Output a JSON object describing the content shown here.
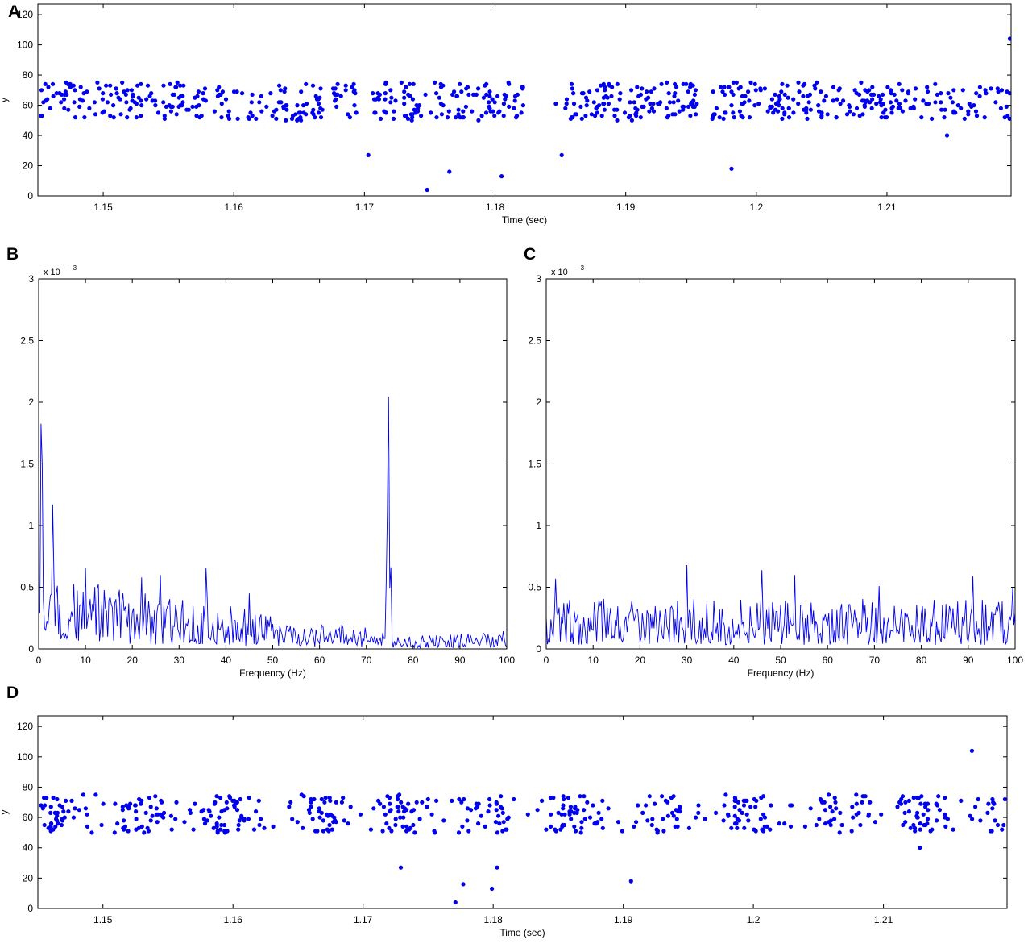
{
  "chart_data": [
    {
      "panel_label": "A",
      "type": "scatter",
      "xlabel": "Time (sec)",
      "ylabel": "y",
      "xlim": [
        1.145,
        1.2195
      ],
      "ylim": [
        0,
        127
      ],
      "xticks": [
        1.15,
        1.16,
        1.17,
        1.18,
        1.19,
        1.2,
        1.21
      ],
      "xtick_labels": [
        "1.15",
        "1.16",
        "1.17",
        "1.18",
        "1.19",
        "1.2",
        "1.21"
      ],
      "yticks": [
        0,
        20,
        40,
        60,
        80,
        100,
        120
      ],
      "ytick_labels": [
        "0",
        "20",
        "40",
        "60",
        "80",
        "100",
        "120"
      ],
      "color": "#0000ee",
      "gaps": [
        [
          1.1668,
          1.1675
        ],
        [
          1.1695,
          1.1705
        ],
        [
          1.1822,
          1.1845
        ],
        [
          1.1955,
          1.1965
        ]
      ],
      "mean_count": 5.2,
      "background_count": 1.4,
      "outliers": [
        [
          1.1703,
          27
        ],
        [
          1.1748,
          4
        ],
        [
          1.1765,
          16
        ],
        [
          1.1805,
          13
        ],
        [
          1.1851,
          27
        ],
        [
          1.1981,
          18
        ],
        [
          1.2146,
          40
        ],
        [
          1.2194,
          104
        ]
      ],
      "points": []
    },
    {
      "panel_label": "B",
      "type": "line",
      "xlabel": "Frequency (Hz)",
      "ylabel": "",
      "y_exponent_label": "x 10",
      "y_exponent_sup": "−3",
      "xlim": [
        0,
        100
      ],
      "ylim": [
        0,
        3
      ],
      "xticks": [
        0,
        10,
        20,
        30,
        40,
        50,
        60,
        70,
        80,
        90,
        100
      ],
      "xtick_labels": [
        "0",
        "10",
        "20",
        "30",
        "40",
        "50",
        "60",
        "70",
        "80",
        "90",
        "100"
      ],
      "yticks": [
        0,
        0.5,
        1,
        1.5,
        2,
        2.5,
        3
      ],
      "ytick_labels": [
        "0",
        "0.5",
        "1",
        "1.5",
        "2",
        "2.5",
        "3"
      ],
      "color": "#0000ee",
      "peaks": [
        [
          0.6,
          2.15,
          0.35
        ],
        [
          3,
          1.17,
          0.3
        ],
        [
          10,
          0.66,
          0.3
        ],
        [
          22,
          0.58,
          0.3
        ],
        [
          26,
          0.6,
          0.3
        ],
        [
          35.8,
          0.68,
          0.4
        ],
        [
          45,
          0.45,
          0.3
        ],
        [
          74.2,
          0.62,
          0.2
        ],
        [
          74.7,
          2.13,
          0.35
        ],
        [
          75.2,
          0.75,
          0.2
        ]
      ],
      "floor": [
        [
          0,
          0.35
        ],
        [
          20,
          0.25
        ],
        [
          40,
          0.2
        ],
        [
          55,
          0.12
        ],
        [
          70,
          0.1
        ],
        [
          80,
          0.06
        ],
        [
          100,
          0.08
        ]
      ],
      "series": [
        {
          "name": "",
          "x": [],
          "values": []
        }
      ]
    },
    {
      "panel_label": "C",
      "type": "line",
      "xlabel": "Frequency (Hz)",
      "ylabel": "",
      "y_exponent_label": "x 10",
      "y_exponent_sup": "−3",
      "xlim": [
        0,
        100
      ],
      "ylim": [
        0,
        3
      ],
      "xticks": [
        0,
        10,
        20,
        30,
        40,
        50,
        60,
        70,
        80,
        90,
        100
      ],
      "xtick_labels": [
        "0",
        "10",
        "20",
        "30",
        "40",
        "50",
        "60",
        "70",
        "80",
        "90",
        "100"
      ],
      "yticks": [
        0,
        0.5,
        1,
        1.5,
        2,
        2.5,
        3
      ],
      "ytick_labels": [
        "0",
        "0.5",
        "1",
        "1.5",
        "2",
        "2.5",
        "3"
      ],
      "color": "#0000ee",
      "peaks": [
        [
          2,
          0.57,
          0.3
        ],
        [
          30,
          0.68,
          0.3
        ],
        [
          46,
          0.64,
          0.3
        ],
        [
          53,
          0.6,
          0.3
        ],
        [
          71,
          0.51,
          0.3
        ],
        [
          91,
          0.59,
          0.3
        ],
        [
          99.5,
          0.5,
          0.3
        ]
      ],
      "floor": [
        [
          0,
          0.22
        ],
        [
          50,
          0.22
        ],
        [
          100,
          0.22
        ]
      ],
      "series": [
        {
          "name": "",
          "x": [],
          "values": []
        }
      ]
    },
    {
      "panel_label": "D",
      "type": "scatter",
      "xlabel": "Time (sec)",
      "ylabel": "y",
      "xlim": [
        1.145,
        1.2195
      ],
      "ylim": [
        0,
        127
      ],
      "xticks": [
        1.15,
        1.16,
        1.17,
        1.18,
        1.19,
        1.2,
        1.21
      ],
      "xtick_labels": [
        "1.15",
        "1.16",
        "1.17",
        "1.18",
        "1.19",
        "1.2",
        "1.21"
      ],
      "yticks": [
        0,
        20,
        40,
        60,
        80,
        100,
        120
      ],
      "ytick_labels": [
        "0",
        "20",
        "40",
        "60",
        "80",
        "100",
        "120"
      ],
      "color": "#0000ee",
      "burst_period": 0.00667,
      "burst_phase": 1.1465,
      "burst_width": 0.0014,
      "mean_count": 5.2,
      "background_count": 0.4,
      "outliers": [
        [
          1.1729,
          27
        ],
        [
          1.1771,
          4
        ],
        [
          1.1777,
          16
        ],
        [
          1.1799,
          13
        ],
        [
          1.1803,
          27
        ],
        [
          1.1906,
          18
        ],
        [
          1.2128,
          40
        ],
        [
          1.2168,
          104
        ]
      ],
      "points": []
    }
  ]
}
